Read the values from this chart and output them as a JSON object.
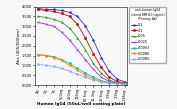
{
  "title_line1": "anti-human IgG4",
  "title_line2": "cloned RMH20 (ug/mL)",
  "title_line3": "(Primary Ab)",
  "xlabel": "Human IgG4 (50uL/well coating plate)",
  "ylabel": "Abs (405/500nm)",
  "x_labels": [
    "4g",
    "2g",
    "1g",
    "500ng",
    "250ng",
    "125ng",
    "62.5ng",
    "31.3ng",
    "15.6ng",
    "7.8ng",
    "3.9ng",
    "1.95ng"
  ],
  "x_values": [
    0,
    1,
    2,
    3,
    4,
    5,
    6,
    7,
    8,
    9,
    10,
    11
  ],
  "series": [
    {
      "label": "0.2",
      "color": "#3333AA",
      "marker": "o",
      "values": [
        3.9,
        3.85,
        3.85,
        3.8,
        3.7,
        3.5,
        3.0,
        2.3,
        1.4,
        0.7,
        0.3,
        0.15
      ]
    },
    {
      "label": "0.1",
      "color": "#CC0000",
      "marker": "s",
      "values": [
        3.85,
        3.8,
        3.75,
        3.65,
        3.5,
        3.1,
        2.4,
        1.6,
        0.9,
        0.4,
        0.18,
        0.1
      ]
    },
    {
      "label": "0.05",
      "color": "#339933",
      "marker": "^",
      "values": [
        3.5,
        3.45,
        3.35,
        3.2,
        2.9,
        2.4,
        1.8,
        1.1,
        0.6,
        0.25,
        0.12,
        0.08
      ]
    },
    {
      "label": "0.025",
      "color": "#9933CC",
      "marker": "x",
      "values": [
        3.2,
        3.1,
        3.0,
        2.7,
        2.3,
        1.8,
        1.3,
        0.8,
        0.4,
        0.18,
        0.1,
        0.07
      ]
    },
    {
      "label": "0.0063",
      "color": "#00BBCC",
      "marker": "D",
      "values": [
        1.55,
        1.5,
        1.45,
        1.3,
        1.1,
        0.85,
        0.6,
        0.4,
        0.22,
        0.12,
        0.08,
        0.06
      ]
    },
    {
      "label": "0.0086",
      "color": "#FF8800",
      "marker": "o",
      "values": [
        1.55,
        1.5,
        1.4,
        1.25,
        1.0,
        0.75,
        0.5,
        0.32,
        0.18,
        0.1,
        0.07,
        0.05
      ]
    },
    {
      "label": "0.0085",
      "color": "#88AAFF",
      "marker": "o",
      "values": [
        1.05,
        1.0,
        0.95,
        0.85,
        0.7,
        0.55,
        0.4,
        0.25,
        0.15,
        0.09,
        0.06,
        0.05
      ]
    }
  ],
  "ylim": [
    0,
    4.0
  ],
  "yticks": [
    0.0,
    0.5,
    1.0,
    1.5,
    2.0,
    2.5,
    3.0,
    3.5,
    4.0
  ],
  "ytick_labels": [
    "0.000",
    "0.500",
    "1.000",
    "1.500",
    "2.000",
    "2.500",
    "3.000",
    "3.500",
    "4.000"
  ],
  "bg_color": "#f8f8f8"
}
